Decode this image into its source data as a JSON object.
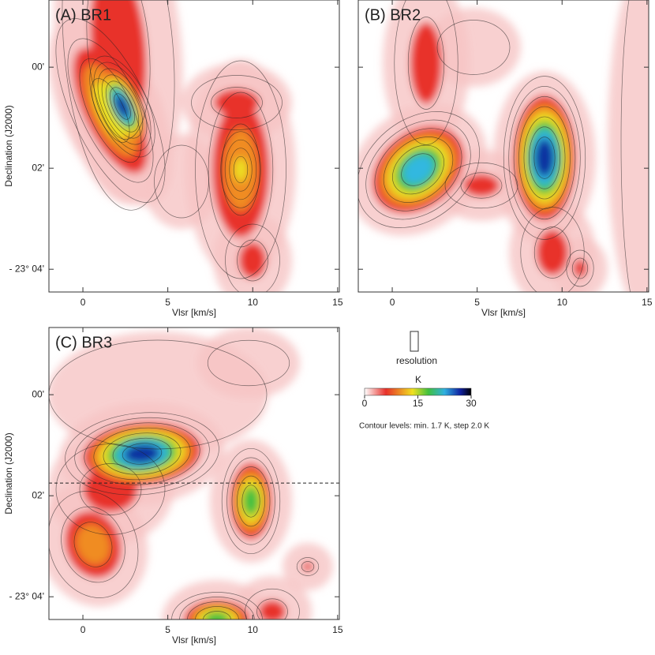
{
  "chart_data": [
    {
      "type": "contour",
      "title": "(A) BR1",
      "xlabel": "Vlsr [km/s]",
      "ylabel": "Declination (J2000)",
      "xlim": [
        -2,
        15.1
      ],
      "xticks": [
        0,
        5,
        10,
        15
      ],
      "ylim": [
        -1.33,
        4.45
      ],
      "yticks": [
        {
          "value": 0,
          "label": "00'"
        },
        {
          "value": 2,
          "label": "02'"
        },
        {
          "value": 4,
          "label": "- 23° 04'"
        }
      ]
    },
    {
      "type": "contour",
      "title": "(B) BR2",
      "xlabel": "Vlsr [km/s]",
      "xlim": [
        -2,
        15.1
      ],
      "xticks": [
        0,
        5,
        10,
        15
      ],
      "ylim": [
        -1.33,
        4.45
      ],
      "yticks": [
        0,
        2,
        4
      ],
      "ytick_labels": false
    },
    {
      "type": "contour",
      "title": "(C) BR3",
      "xlabel": "Vlsr [km/s]",
      "ylabel": "Declination (J2000)",
      "xlim": [
        -2,
        15.1
      ],
      "xticks": [
        0,
        5,
        10,
        15
      ],
      "ylim": [
        -1.33,
        4.45
      ],
      "yticks": [
        {
          "value": 0,
          "label": "00'"
        },
        {
          "value": 2,
          "label": "02'"
        },
        {
          "value": 4,
          "label": "- 23° 04'"
        }
      ],
      "hline": 1.75
    }
  ],
  "colorbar": {
    "label": "K",
    "lim": [
      0,
      30
    ],
    "ticks": [
      0,
      15,
      30
    ]
  },
  "resolution_label": "resolution",
  "contour_note": "Contour levels: min. 1.7 K, step 2.0 K"
}
